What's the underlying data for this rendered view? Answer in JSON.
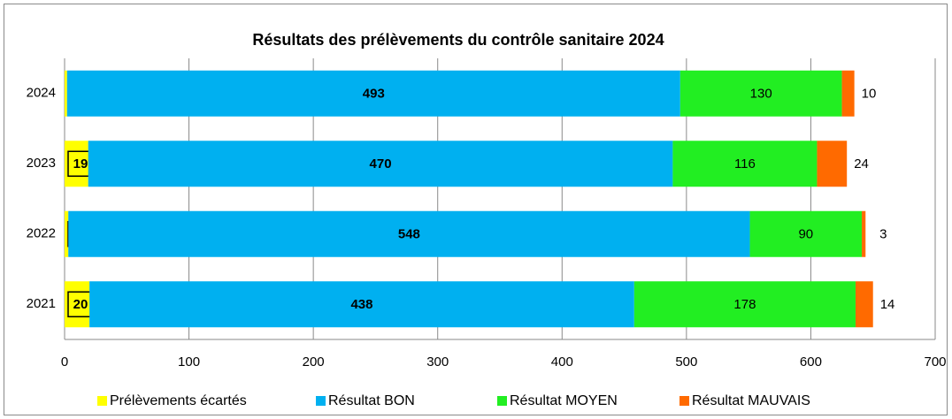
{
  "chart_data": {
    "type": "stacked_barh",
    "title": "Résultats des prélèvements du contrôle sanitaire 2024",
    "categories": [
      "2024",
      "2023",
      "2022",
      "2021"
    ],
    "series": [
      {
        "name": "Prélèvements écartés",
        "color": "#ffff00",
        "values": [
          2,
          19,
          3,
          20
        ]
      },
      {
        "name": "Résultat BON",
        "color": "#00b0f0",
        "values": [
          493,
          470,
          548,
          438
        ]
      },
      {
        "name": "Résultat MOYEN",
        "color": "#22ee22",
        "values": [
          130,
          116,
          90,
          178
        ]
      },
      {
        "name": "Résultat MAUVAIS",
        "color": "#ff6a00",
        "values": [
          10,
          24,
          3,
          14
        ]
      }
    ],
    "xlim": [
      0,
      700
    ],
    "xticks": [
      0,
      100,
      200,
      300,
      400,
      500,
      600,
      700
    ],
    "grid": true
  }
}
